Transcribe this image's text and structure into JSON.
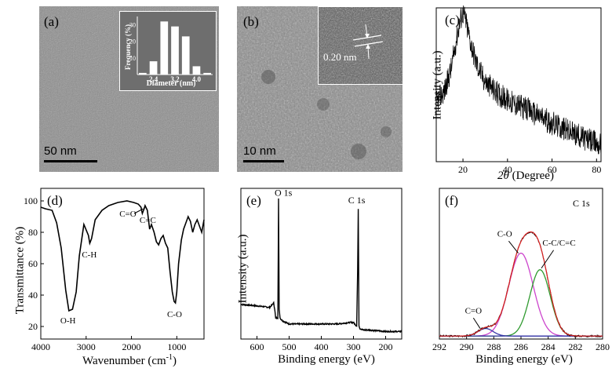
{
  "panels": {
    "a": {
      "label": "(a)",
      "scale_bar": "50 nm",
      "inset_chart": {
        "type": "bar",
        "ylabel": "Frequency (%)",
        "xlabel": "Diameter (nm)",
        "xticks": [
          "2.4",
          "3.2",
          "4.0"
        ],
        "yticks": [
          "10",
          "20",
          "30"
        ],
        "categories": [
          "2.0",
          "2.4",
          "2.8",
          "3.2",
          "3.6",
          "4.0",
          "4.4"
        ],
        "values": [
          1,
          8,
          32,
          29,
          23,
          5,
          1
        ],
        "ylim": [
          0,
          35
        ]
      }
    },
    "b": {
      "label": "(b)",
      "scale_bar": "10 nm",
      "lattice_spacing": "0.20 nm"
    },
    "c": {
      "label": "(c)"
    },
    "d": {
      "label": "(d)"
    },
    "e": {
      "label": "(e)"
    },
    "f": {
      "label": "(f)"
    }
  },
  "chart_data": [
    {
      "id": "xrd",
      "type": "line",
      "title": "",
      "xlabel": "2θ (Degree)",
      "ylabel": "Intensity (a.u.)",
      "xlim": [
        8,
        82
      ],
      "xticks": [
        20,
        40,
        60,
        80
      ],
      "x": [
        8,
        12,
        15,
        17,
        19,
        20,
        21,
        23,
        26,
        30,
        35,
        40,
        50,
        60,
        70,
        80,
        82
      ],
      "y": [
        0.38,
        0.47,
        0.62,
        0.8,
        0.93,
        0.97,
        0.93,
        0.8,
        0.64,
        0.52,
        0.45,
        0.4,
        0.33,
        0.25,
        0.18,
        0.12,
        0.11
      ]
    },
    {
      "id": "ftir",
      "type": "line",
      "title": "",
      "xlabel": "Wavenumber (cm",
      "xlabel_sup": "-1",
      "xlabel_end": ")",
      "ylabel": "Transmittance (%)",
      "xlim": [
        4000,
        400
      ],
      "ylim": [
        12,
        108
      ],
      "xticks": [
        4000,
        3000,
        2000,
        1000
      ],
      "yticks": [
        20,
        40,
        60,
        80,
        100
      ],
      "annotations": [
        "O-H",
        "C-H",
        "C=O",
        "C=C",
        "C-O"
      ],
      "x": [
        4000,
        3900,
        3750,
        3650,
        3550,
        3450,
        3380,
        3300,
        3220,
        3150,
        3050,
        2950,
        2920,
        2880,
        2800,
        2650,
        2500,
        2300,
        2100,
        1950,
        1850,
        1790,
        1760,
        1720,
        1700,
        1650,
        1600,
        1560,
        1500,
        1450,
        1400,
        1350,
        1300,
        1250,
        1200,
        1150,
        1100,
        1060,
        1030,
        1000,
        960,
        900,
        850,
        800,
        750,
        700,
        650,
        600,
        550,
        500,
        450,
        400
      ],
      "y": [
        96,
        95,
        94,
        86,
        70,
        43,
        30,
        31,
        42,
        65,
        85,
        78,
        73,
        76,
        88,
        94,
        97,
        99,
        100,
        99,
        98,
        96,
        92,
        95,
        97,
        94,
        82,
        85,
        80,
        74,
        72,
        76,
        78,
        73,
        70,
        55,
        42,
        36,
        35,
        42,
        60,
        75,
        82,
        86,
        90,
        87,
        80,
        85,
        88,
        84,
        80,
        88
      ]
    },
    {
      "id": "xps-survey",
      "type": "line",
      "title": "",
      "xlabel": "Binding energy (eV)",
      "ylabel": "Intensity (a.u.)",
      "xlim": [
        650,
        150
      ],
      "ylim": [
        0,
        1
      ],
      "xticks": [
        600,
        500,
        400,
        300,
        200
      ],
      "annotations": [
        "O 1s",
        "C 1s"
      ],
      "x": [
        650,
        600,
        560,
        548,
        545,
        542,
        535,
        533,
        531,
        528,
        525,
        520,
        510,
        500,
        450,
        400,
        350,
        310,
        300,
        292,
        290,
        287,
        285,
        283,
        280,
        270,
        250,
        200,
        150
      ],
      "y": [
        0.23,
        0.22,
        0.21,
        0.24,
        0.2,
        0.14,
        0.14,
        0.93,
        0.2,
        0.14,
        0.13,
        0.12,
        0.11,
        0.1,
        0.1,
        0.1,
        0.1,
        0.11,
        0.11,
        0.09,
        0.09,
        0.45,
        0.86,
        0.09,
        0.07,
        0.06,
        0.06,
        0.05,
        0.05
      ]
    },
    {
      "id": "xps-c1s",
      "type": "line",
      "title": "C 1s",
      "xlabel": "Binding energy (eV)",
      "ylabel": "",
      "xlim": [
        292,
        280
      ],
      "ylim": [
        0,
        1
      ],
      "xticks": [
        292,
        290,
        288,
        286,
        284,
        282,
        280
      ],
      "annotations": [
        "C-O",
        "C-C/C=C",
        "C=O"
      ],
      "peaks": [
        {
          "name": "C-O",
          "center": 286.0,
          "height": 0.55,
          "sigma": 0.9
        },
        {
          "name": "C-C/C=C",
          "center": 284.6,
          "height": 0.44,
          "sigma": 0.75
        },
        {
          "name": "C=O",
          "center": 288.6,
          "height": 0.05,
          "sigma": 0.55
        }
      ],
      "baseline": 0.02
    }
  ]
}
